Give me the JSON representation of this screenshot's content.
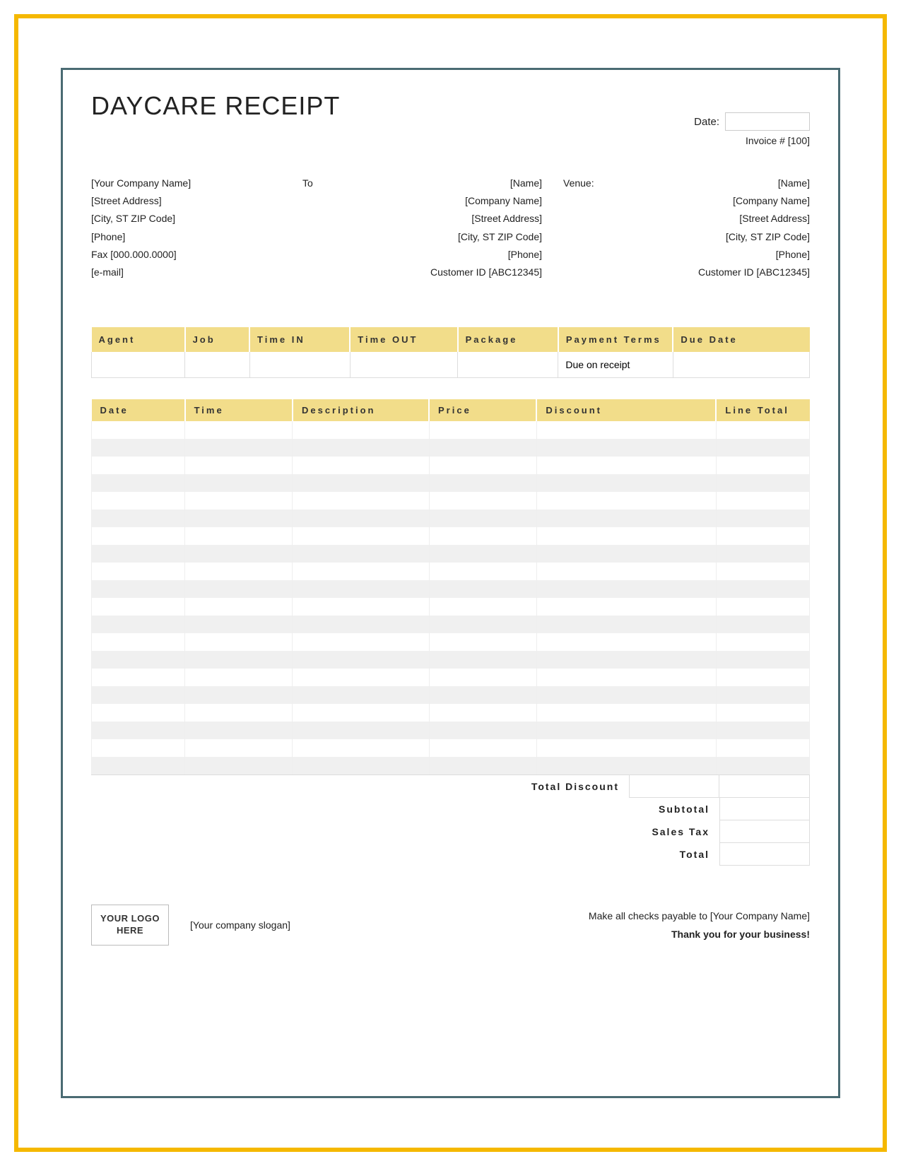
{
  "title": "DAYCARE RECEIPT",
  "header": {
    "date_label": "Date:",
    "invoice_label": "Invoice # [100]"
  },
  "from": {
    "company": "[Your Company Name]",
    "street": "[Street Address]",
    "city": "[City, ST  ZIP Code]",
    "phone": "[Phone]",
    "fax": "Fax [000.000.0000]",
    "email": "[e-mail]"
  },
  "to_label": "To",
  "to": {
    "name": "[Name]",
    "company": "[Company Name]",
    "street": "[Street Address]",
    "city": "[City, ST  ZIP Code]",
    "phone": "[Phone]",
    "customer_id": "Customer ID [ABC12345]"
  },
  "venue_label": "Venue:",
  "venue": {
    "name": "[Name]",
    "company": "[Company Name]",
    "street": "[Street Address]",
    "city": "[City, ST  ZIP Code]",
    "phone": "[Phone]",
    "customer_id": "Customer ID [ABC12345]"
  },
  "summary": {
    "headers": [
      "Agent",
      "Job",
      "Time IN",
      "Time OUT",
      "Package",
      "Payment Terms",
      "Due Date"
    ],
    "row": [
      "",
      "",
      "",
      "",
      "",
      "Due on receipt",
      ""
    ],
    "col_widths": [
      "13%",
      "9%",
      "14%",
      "15%",
      "14%",
      "16%",
      "19%"
    ]
  },
  "lines": {
    "headers": [
      "Date",
      "Time",
      "Description",
      "Price",
      "Discount",
      "Line Total"
    ],
    "col_widths": [
      "13%",
      "15%",
      "19%",
      "15%",
      "25%",
      "13%"
    ],
    "row_count": 20
  },
  "totals": {
    "total_discount": "Total Discount",
    "subtotal": "Subtotal",
    "sales_tax": "Sales Tax",
    "total": "Total"
  },
  "footer": {
    "logo_text": "YOUR LOGO HERE",
    "slogan": "[Your company slogan]",
    "payable": "Make all checks payable to [Your Company Name]",
    "thanks": "Thank you for your business!"
  },
  "colors": {
    "outer_border": "#f5b800",
    "inner_border": "#4a6b73",
    "table_header_bg": "#f2dd8a",
    "stripe_bg": "#f0f0f0"
  }
}
